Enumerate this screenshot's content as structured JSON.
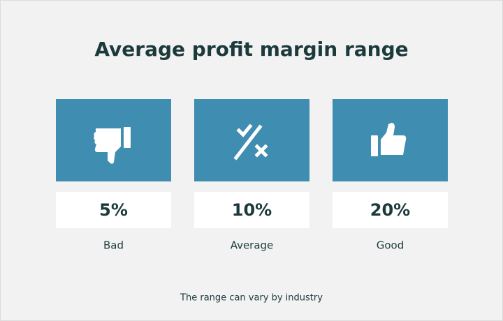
{
  "header": {
    "title": "Average profit margin range"
  },
  "cards": [
    {
      "value": "5%",
      "label": "Bad"
    },
    {
      "value": "10%",
      "label": "Average"
    },
    {
      "value": "20%",
      "label": "Good"
    }
  ],
  "footer": {
    "note": "The range can vary by industry"
  }
}
